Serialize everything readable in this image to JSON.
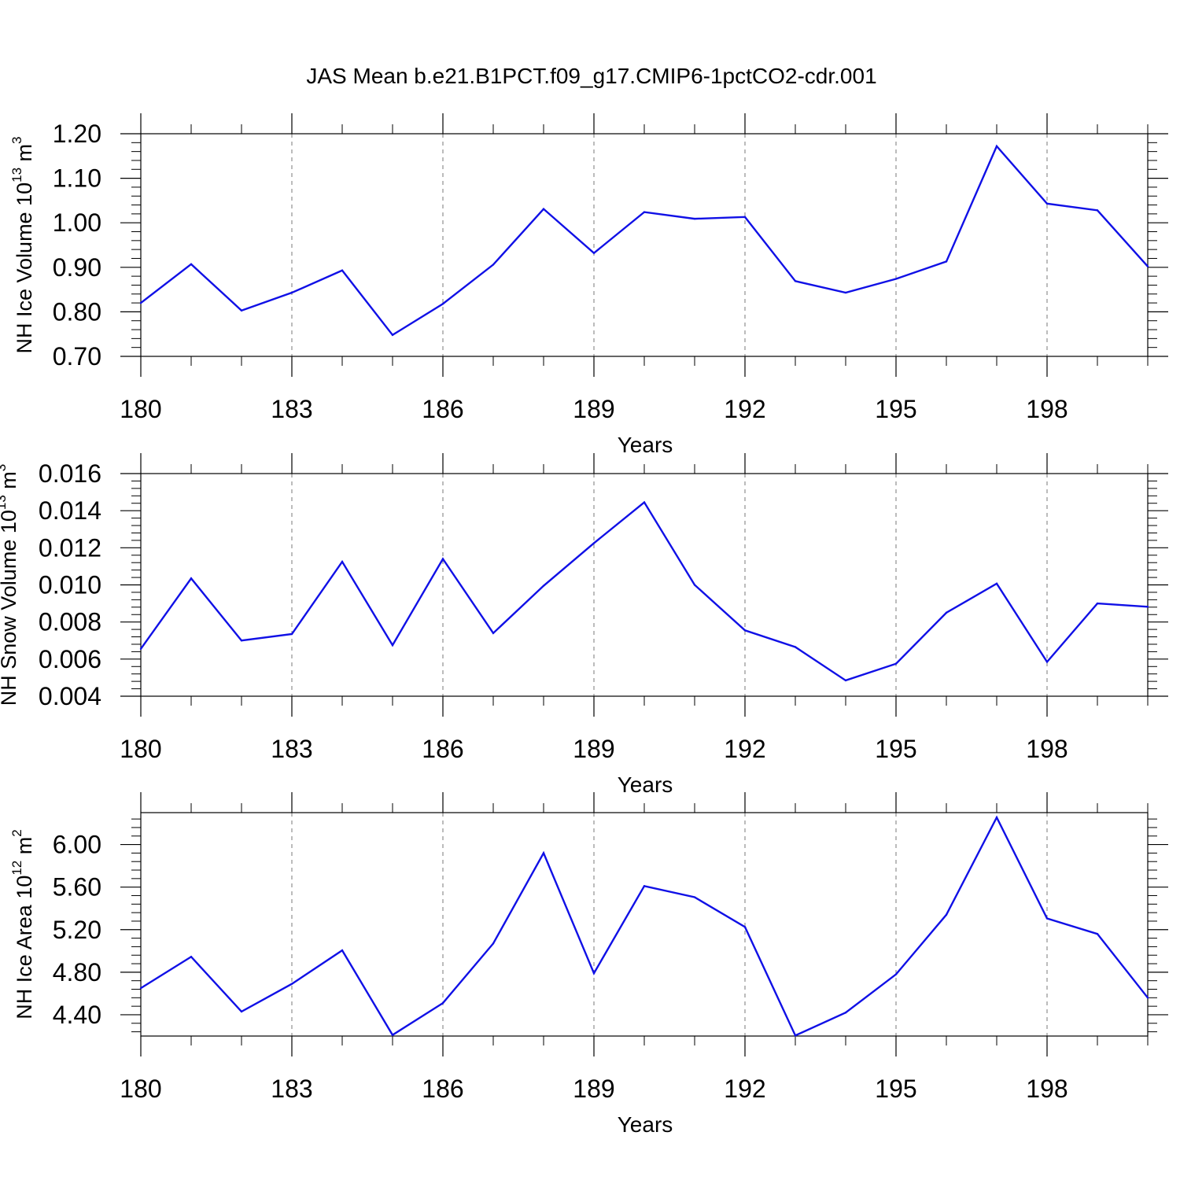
{
  "figure": {
    "title": "JAS Mean b.e21.B1PCT.f09_g17.CMIP6-1pctCO2-cdr.001"
  },
  "colors": {
    "line": "#1010e6",
    "axis": "#000000",
    "grid": "#7a7a7a"
  },
  "chart_data": [
    {
      "type": "line",
      "ylabel": {
        "main": "NH Ice Volume 10",
        "exponent": "13",
        "unit": " m",
        "unit_exponent": "3"
      },
      "xlabel": "Years",
      "x": [
        180,
        181,
        182,
        183,
        184,
        185,
        186,
        187,
        188,
        189,
        190,
        191,
        192,
        193,
        194,
        195,
        196,
        197,
        198,
        199,
        200
      ],
      "xlim": [
        180,
        200
      ],
      "xticks": [
        180,
        183,
        186,
        189,
        192,
        195,
        198
      ],
      "xtick_labels": [
        "180",
        "183",
        "186",
        "189",
        "192",
        "195",
        "198"
      ],
      "x_minor_step": 1,
      "ylim": [
        0.7,
        1.2
      ],
      "yticks": [
        0.7,
        0.8,
        0.9,
        1.0,
        1.1,
        1.2
      ],
      "ytick_labels": [
        "0.70",
        "0.80",
        "0.90",
        "1.00",
        "1.10",
        "1.20"
      ],
      "y_minor_step": 0.02,
      "grid": "vertical dashed at major x ticks",
      "series": [
        {
          "name": "NH Ice Volume",
          "values": [
            0.82,
            0.907,
            0.803,
            0.843,
            0.893,
            0.748,
            0.818,
            0.906,
            1.031,
            0.932,
            1.024,
            1.009,
            1.013,
            0.869,
            0.843,
            0.874,
            0.913,
            1.172,
            1.043,
            1.028,
            0.902
          ]
        }
      ]
    },
    {
      "type": "line",
      "ylabel": {
        "main": "NH Snow Volume 10",
        "exponent": "13",
        "unit": " m",
        "unit_exponent": "3"
      },
      "xlabel": "Years",
      "x": [
        180,
        181,
        182,
        183,
        184,
        185,
        186,
        187,
        188,
        189,
        190,
        191,
        192,
        193,
        194,
        195,
        196,
        197,
        198,
        199,
        200
      ],
      "xlim": [
        180,
        200
      ],
      "xticks": [
        180,
        183,
        186,
        189,
        192,
        195,
        198
      ],
      "xtick_labels": [
        "180",
        "183",
        "186",
        "189",
        "192",
        "195",
        "198"
      ],
      "x_minor_step": 1,
      "ylim": [
        0.004,
        0.016
      ],
      "yticks": [
        0.004,
        0.006,
        0.008,
        0.01,
        0.012,
        0.014,
        0.016
      ],
      "ytick_labels": [
        "0.004",
        "0.006",
        "0.008",
        "0.010",
        "0.012",
        "0.014",
        "0.016"
      ],
      "y_minor_step": 0.0004,
      "grid": "vertical dashed at major x ticks",
      "series": [
        {
          "name": "NH Snow Volume",
          "values": [
            0.00655,
            0.01035,
            0.007,
            0.00735,
            0.01125,
            0.00675,
            0.0114,
            0.0074,
            0.00995,
            0.01225,
            0.01445,
            0.01,
            0.00755,
            0.00665,
            0.00485,
            0.00575,
            0.0085,
            0.01007,
            0.00585,
            0.009,
            0.00882
          ]
        }
      ]
    },
    {
      "type": "line",
      "ylabel": {
        "main": "NH Ice Area 10",
        "exponent": "12",
        "unit": " m",
        "unit_exponent": "2"
      },
      "xlabel": "Years",
      "x": [
        180,
        181,
        182,
        183,
        184,
        185,
        186,
        187,
        188,
        189,
        190,
        191,
        192,
        193,
        194,
        195,
        196,
        197,
        198,
        199,
        200
      ],
      "xlim": [
        180,
        200
      ],
      "xticks": [
        180,
        183,
        186,
        189,
        192,
        195,
        198
      ],
      "xtick_labels": [
        "180",
        "183",
        "186",
        "189",
        "192",
        "195",
        "198"
      ],
      "x_minor_step": 1,
      "ylim": [
        4.2,
        6.3
      ],
      "yticks": [
        4.4,
        4.8,
        5.2,
        5.6,
        6.0
      ],
      "ytick_labels": [
        "4.40",
        "4.80",
        "5.20",
        "5.60",
        "6.00"
      ],
      "y_minor_step": 0.08,
      "grid": "vertical dashed at major x ticks",
      "series": [
        {
          "name": "NH Ice Area",
          "values": [
            4.65,
            4.945,
            4.43,
            4.69,
            5.005,
            4.21,
            4.51,
            5.07,
            5.92,
            4.79,
            5.61,
            5.505,
            5.225,
            4.205,
            4.42,
            4.78,
            5.34,
            6.255,
            5.305,
            5.16,
            4.56
          ]
        }
      ]
    }
  ]
}
